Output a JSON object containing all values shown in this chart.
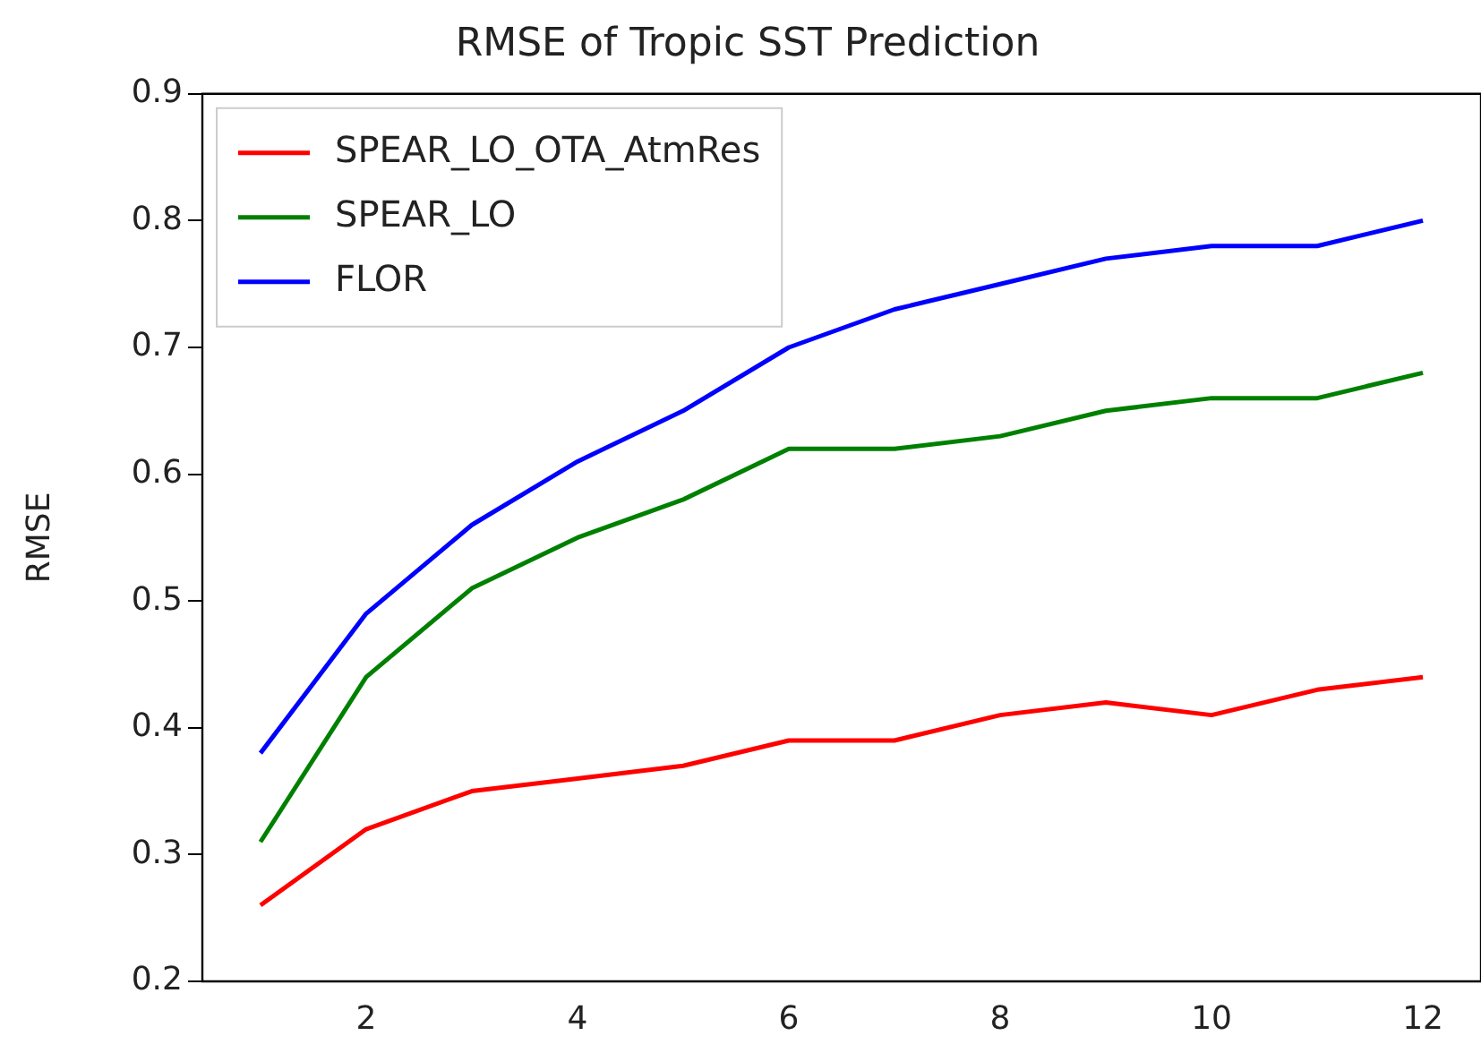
{
  "chart_data": {
    "type": "line",
    "title": "RMSE of Tropic SST Prediction",
    "ylabel": "RMSE",
    "x": [
      1,
      2,
      3,
      4,
      5,
      6,
      7,
      8,
      9,
      10,
      11,
      12
    ],
    "series": [
      {
        "name": "SPEAR_LO_OTA_AtmRes",
        "color": "#ff0000",
        "values": [
          0.26,
          0.32,
          0.35,
          0.36,
          0.37,
          0.39,
          0.39,
          0.41,
          0.42,
          0.41,
          0.43,
          0.44
        ]
      },
      {
        "name": "SPEAR_LO",
        "color": "#008000",
        "values": [
          0.31,
          0.44,
          0.51,
          0.55,
          0.58,
          0.62,
          0.62,
          0.63,
          0.65,
          0.66,
          0.66,
          0.68
        ]
      },
      {
        "name": "FLOR",
        "color": "#0000ff",
        "values": [
          0.38,
          0.49,
          0.56,
          0.61,
          0.65,
          0.7,
          0.73,
          0.75,
          0.77,
          0.78,
          0.78,
          0.8
        ]
      }
    ],
    "xlim": [
      0.45,
      12.55
    ],
    "xticks": [
      2,
      4,
      6,
      8,
      10,
      12
    ],
    "ylim": [
      0.2,
      0.9
    ],
    "yticks": [
      0.2,
      0.3,
      0.4,
      0.5,
      0.6,
      0.7,
      0.8,
      0.9
    ],
    "grid": false,
    "legend": "top left",
    "marker": "none",
    "line_style": "solid"
  }
}
